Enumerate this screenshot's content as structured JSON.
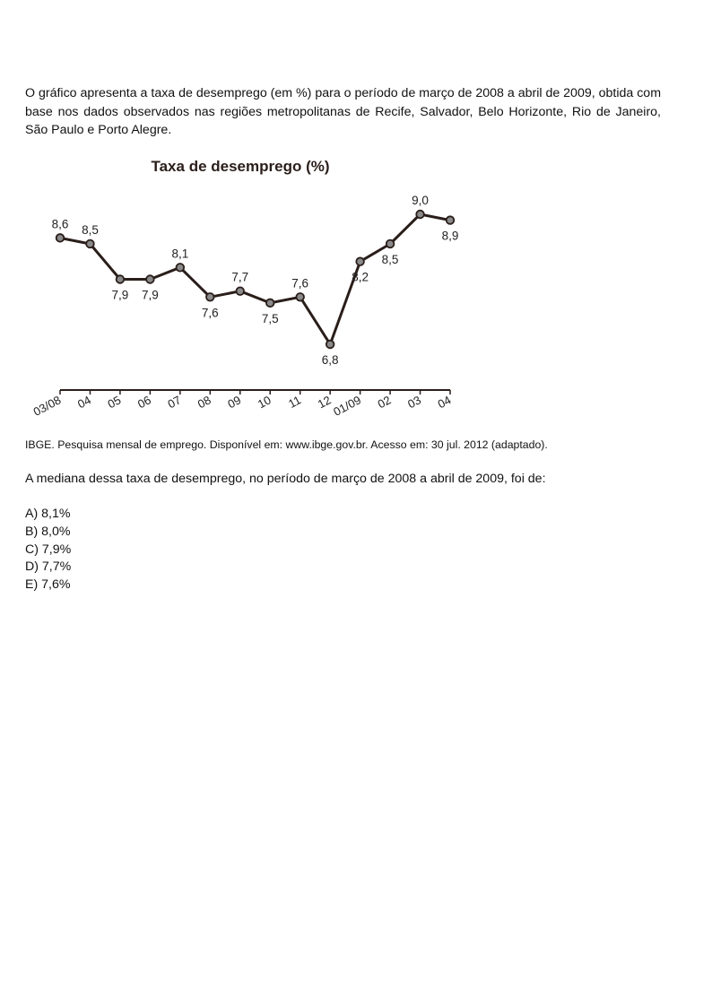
{
  "intro": "O gráfico apresenta a taxa de desemprego (em %) para o período de março de 2008 a abril de 2009, obtida com base nos dados observados nas regiões metropolitanas de Recife, Salvador, Belo Horizonte, Rio de Janeiro, São Paulo e Porto Alegre.",
  "chart_data": {
    "type": "line",
    "title": "Taxa de desemprego (%)",
    "xlabel": "",
    "ylabel": "",
    "categories": [
      "03/08",
      "04",
      "05",
      "06",
      "07",
      "08",
      "09",
      "10",
      "11",
      "12",
      "01/09",
      "02",
      "03",
      "04"
    ],
    "values": [
      8.6,
      8.5,
      7.9,
      7.9,
      8.1,
      7.6,
      7.7,
      7.5,
      7.6,
      6.8,
      8.2,
      8.5,
      9.0,
      8.9
    ],
    "value_labels": [
      "8,6",
      "8,5",
      "7,9",
      "7,9",
      "8,1",
      "7,6",
      "7,7",
      "7,5",
      "7,6",
      "6,8",
      "8,2",
      "8,5",
      "9,0",
      "8,9"
    ],
    "label_positions": [
      "above",
      "above",
      "below",
      "below",
      "above",
      "below",
      "above",
      "below",
      "above",
      "below",
      "below",
      "below",
      "above",
      "below"
    ],
    "ylim": [
      6.0,
      9.3
    ],
    "grid": false,
    "line_color": "#2a1e1a",
    "marker_color": "#8a8a8a"
  },
  "source": "IBGE. Pesquisa mensal de emprego. Disponível em: www.ibge.gov.br. Acesso em: 30 jul. 2012 (adaptado).",
  "question": "A mediana dessa taxa de desemprego, no período de março de 2008 a abril de 2009, foi de:",
  "options": [
    "A) 8,1%",
    "B) 8,0%",
    "C) 7,9%",
    "D) 7,7%",
    "E) 7,6%"
  ]
}
